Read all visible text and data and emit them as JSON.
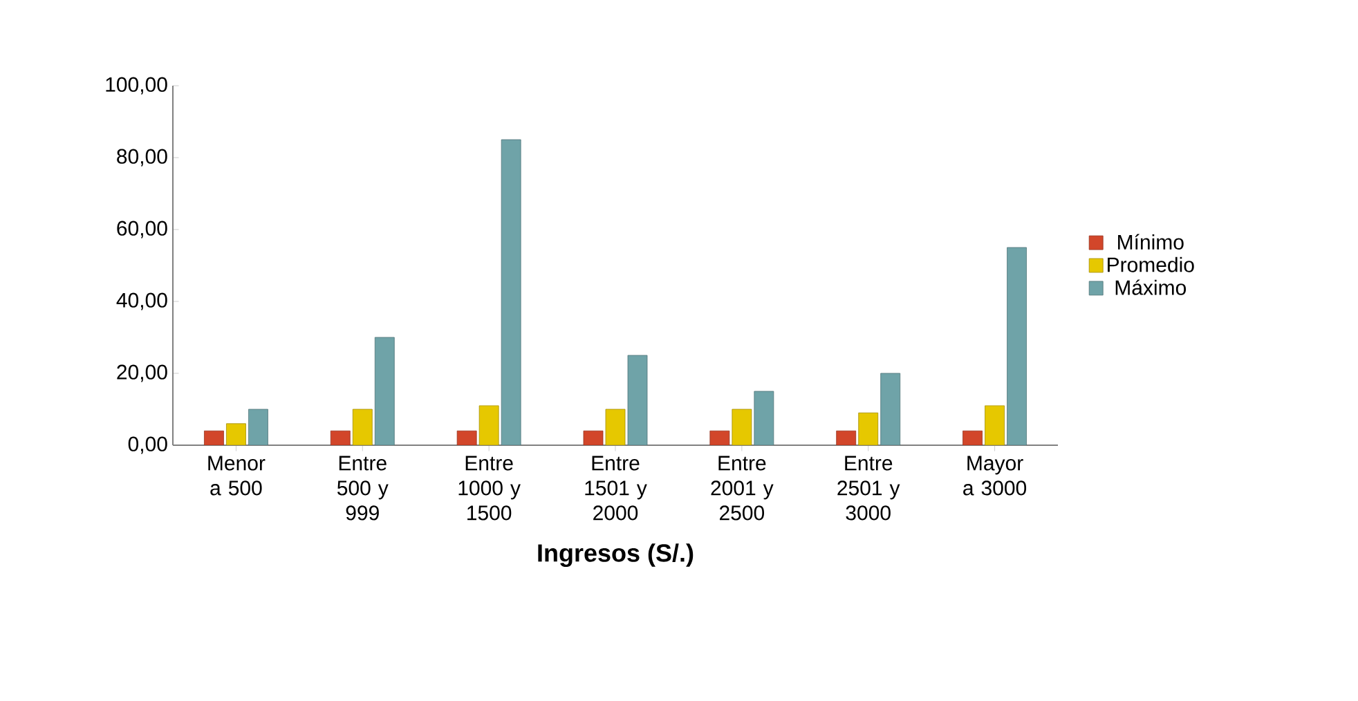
{
  "chart_data": {
    "type": "bar",
    "xlabel": "Ingresos (S/.)",
    "categories": [
      "Menor a 500",
      "Entre 500 y 999",
      "Entre 1000 y 1500",
      "Entre 1501 y 2000",
      "Entre 2001 y 2500",
      "Entre 2501 y 3000",
      "Mayor a 3000"
    ],
    "series": [
      {
        "name": "Mínimo",
        "color": "#d2462a",
        "values": [
          4,
          4,
          4,
          4,
          4,
          4,
          4
        ]
      },
      {
        "name": "Promedio",
        "color": "#e6c800",
        "values": [
          6,
          10,
          11,
          10,
          10,
          9,
          11
        ]
      },
      {
        "name": "Máximo",
        "color": "#6fa3a8",
        "values": [
          10,
          30,
          85,
          25,
          15,
          20,
          55
        ]
      }
    ],
    "ylim": [
      0,
      100
    ],
    "yticks": [
      {
        "value": 0,
        "label": "0,00"
      },
      {
        "value": 20,
        "label": "20,00"
      },
      {
        "value": 40,
        "label": "40,00"
      },
      {
        "value": 60,
        "label": "60,00"
      },
      {
        "value": 80,
        "label": "80,00"
      },
      {
        "value": 100,
        "label": "100,00"
      }
    ],
    "legend": "right"
  }
}
